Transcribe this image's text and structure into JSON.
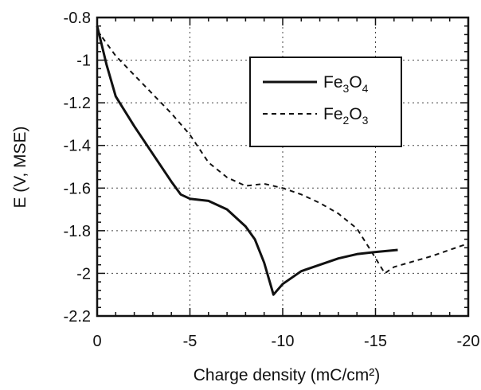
{
  "chart_data": {
    "type": "line",
    "xlabel": "Charge density (mC/cm²)",
    "ylabel": "E (V, MSE)",
    "xlim": [
      0,
      -20
    ],
    "ylim": [
      -2.2,
      -0.8
    ],
    "x_ticks": [
      0,
      -5,
      -10,
      -15,
      -20
    ],
    "x_tick_labels": [
      "0",
      "-5",
      "-10",
      "-15",
      "-20"
    ],
    "y_ticks": [
      -0.8,
      -1,
      -1.2,
      -1.4,
      -1.6,
      -1.8,
      -2,
      -2.2
    ],
    "y_tick_labels": [
      "-0.8",
      "-1",
      "-1.2",
      "-1.4",
      "-1.6",
      "-1.8",
      "-2",
      "-2.2"
    ],
    "grid": true,
    "legend_position": "top-right",
    "series": [
      {
        "name": "Fe3O4",
        "name_parts": {
          "base1": "Fe",
          "sub1": "3",
          "base2": "O",
          "sub2": "4"
        },
        "style": "solid",
        "color": "#111111",
        "x": [
          0,
          -0.5,
          -1,
          -2,
          -3,
          -4,
          -4.5,
          -5,
          -6,
          -7,
          -8,
          -8.5,
          -9,
          -9.3,
          -9.5,
          -10,
          -11,
          -12,
          -13,
          -14,
          -15,
          -16.2
        ],
        "y": [
          -0.84,
          -1.02,
          -1.17,
          -1.31,
          -1.44,
          -1.57,
          -1.63,
          -1.65,
          -1.66,
          -1.7,
          -1.78,
          -1.84,
          -1.95,
          -2.04,
          -2.1,
          -2.05,
          -1.99,
          -1.96,
          -1.93,
          -1.91,
          -1.9,
          -1.89
        ]
      },
      {
        "name": "Fe2O3",
        "name_parts": {
          "base1": "Fe",
          "sub1": "2",
          "base2": "O",
          "sub2": "3"
        },
        "style": "dashed",
        "color": "#111111",
        "x": [
          0,
          -1,
          -2,
          -3,
          -4,
          -5,
          -6,
          -7,
          -8,
          -9,
          -10,
          -11,
          -12,
          -13,
          -14,
          -14.8,
          -15.5,
          -16,
          -18,
          -20
        ],
        "y": [
          -0.86,
          -0.98,
          -1.07,
          -1.16,
          -1.25,
          -1.35,
          -1.48,
          -1.55,
          -1.59,
          -1.58,
          -1.6,
          -1.63,
          -1.67,
          -1.72,
          -1.79,
          -1.9,
          -2.0,
          -1.97,
          -1.92,
          -1.86
        ]
      }
    ]
  }
}
